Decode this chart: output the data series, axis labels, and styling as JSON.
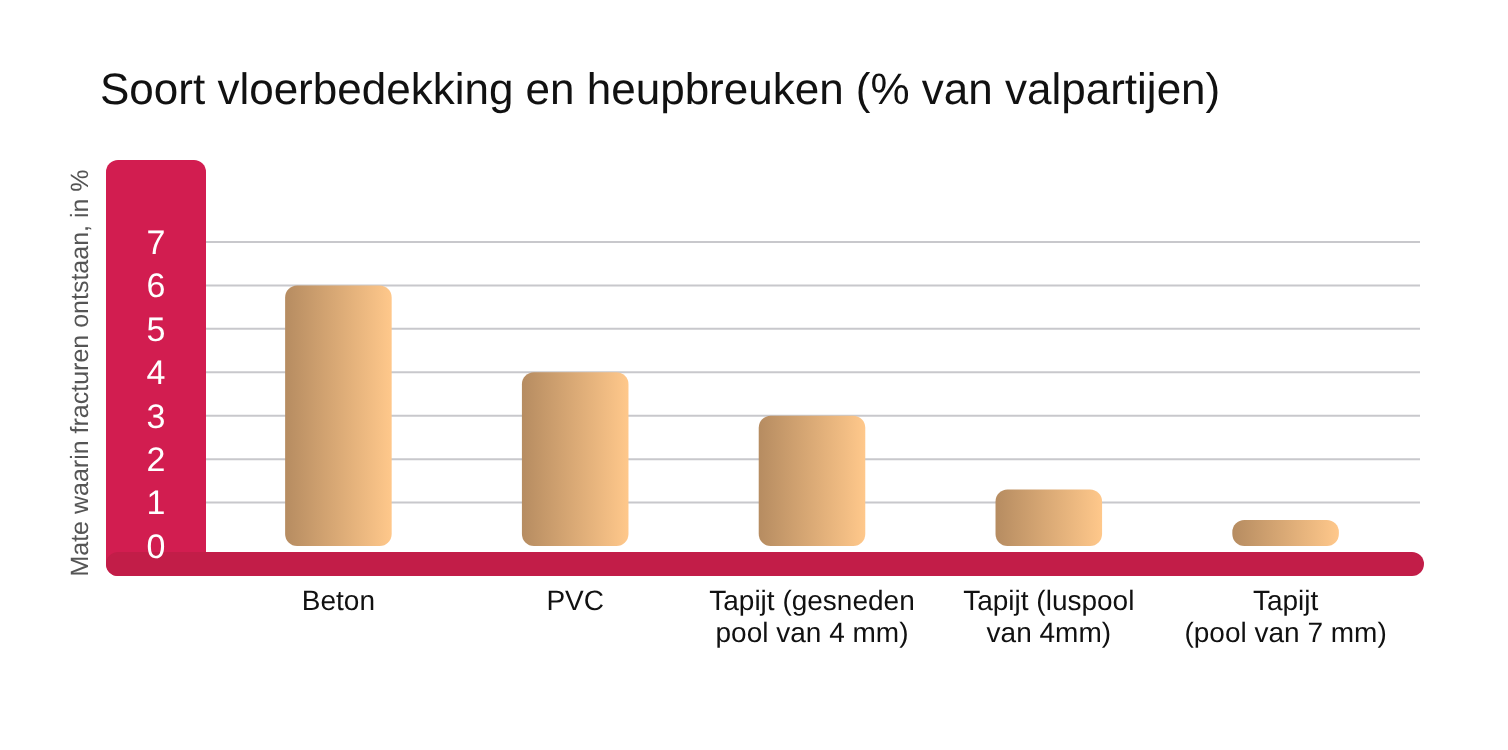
{
  "chart_data": {
    "type": "bar",
    "title": "Soort vloerbedekking en heupbreuken (% van valpartijen)",
    "ylabel": "Mate waarin fracturen ontstaan, in %",
    "categories": [
      "Beton",
      "PVC",
      "Tapijt (gesneden\npool van 4 mm)",
      "Tapijt (luspool\nvan 4mm)",
      "Tapijt\n(pool van 7 mm)"
    ],
    "values": [
      6,
      4,
      3,
      1.3,
      0.6
    ],
    "color": "#d9a774",
    "ylim": [
      0,
      7
    ],
    "yticks": [
      0,
      1,
      2,
      3,
      4,
      5,
      6,
      7
    ],
    "grid": "y"
  }
}
